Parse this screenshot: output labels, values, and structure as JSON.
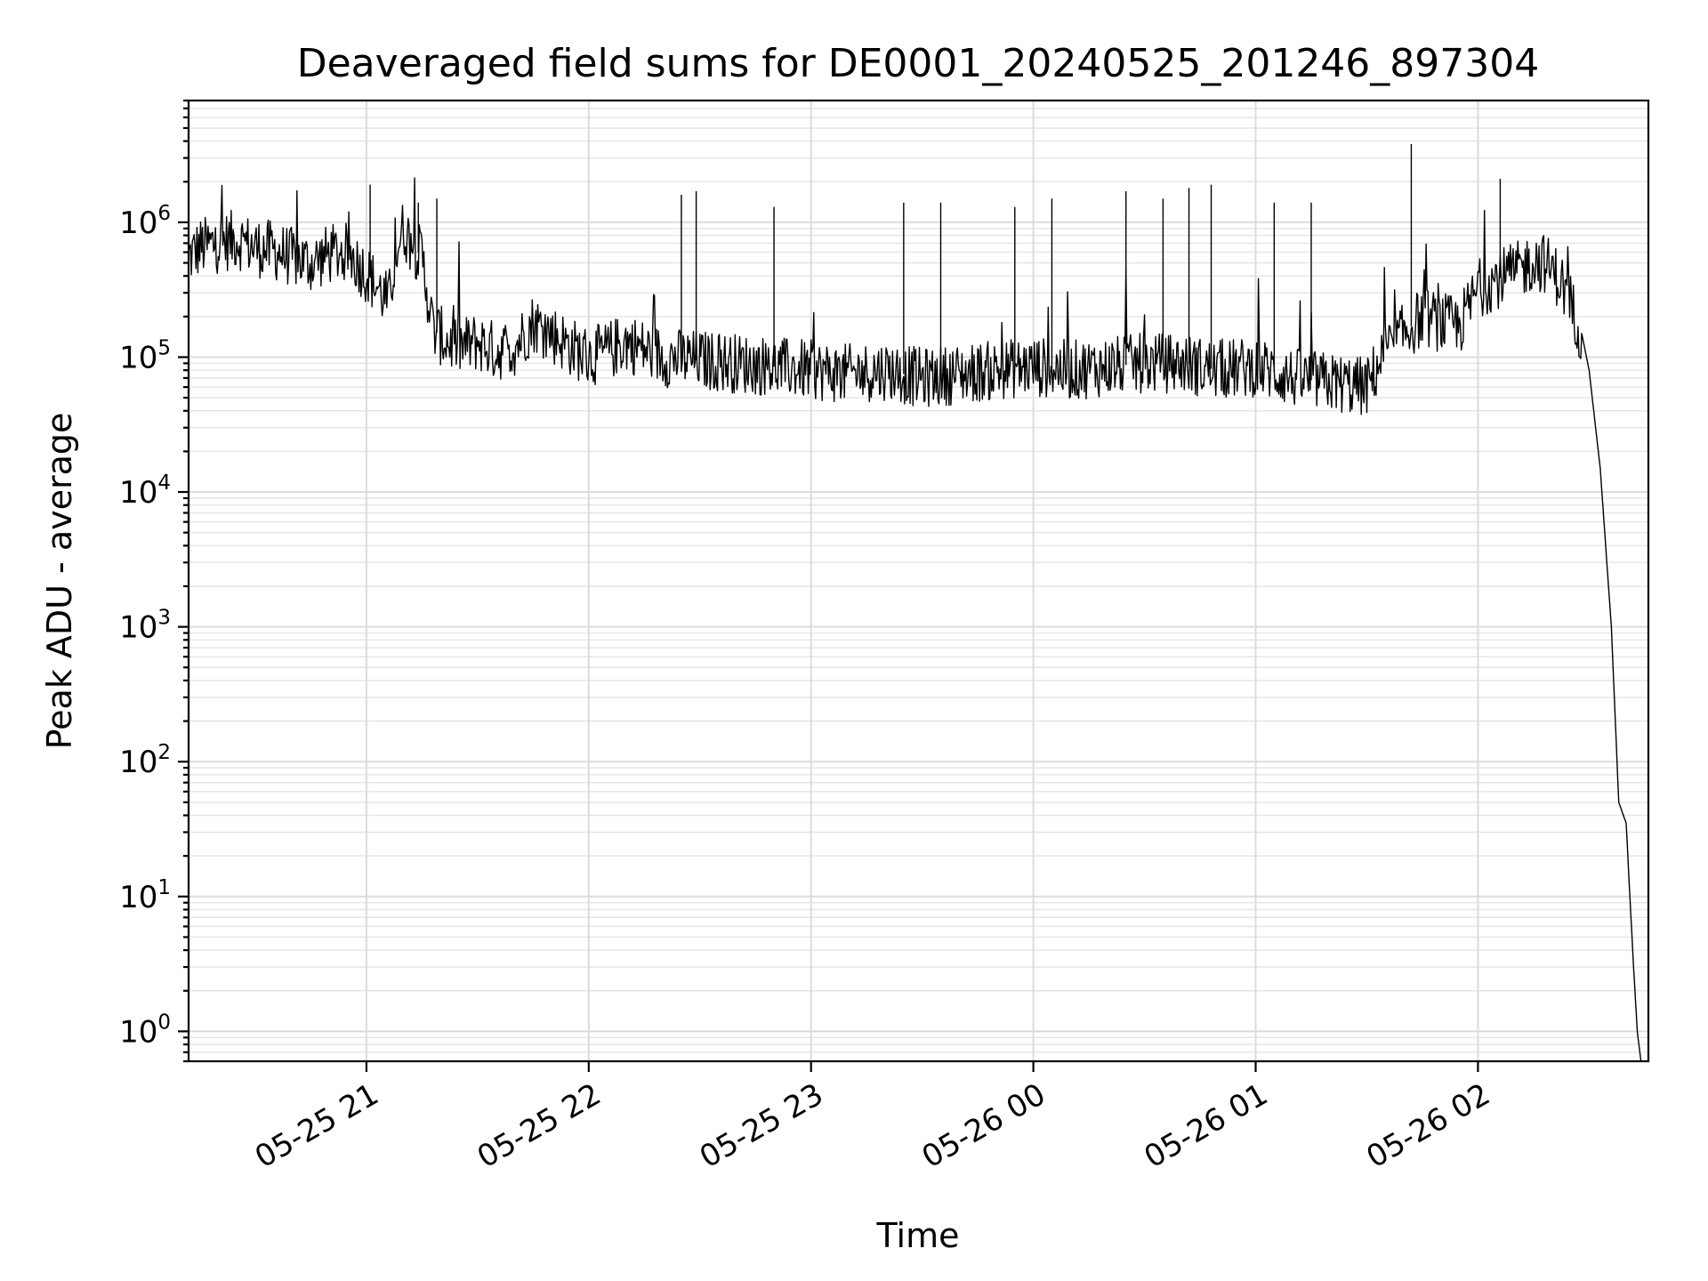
{
  "chart_data": {
    "type": "line",
    "title": "Deaveraged field sums for DE0001_20240525_201246_897304",
    "xlabel": "Time",
    "ylabel": "Peak ADU - average",
    "yscale": "log",
    "xlim": [
      "2024-05-25 20:12",
      "2024-05-26 02:46"
    ],
    "ylim": [
      0.6,
      8000000
    ],
    "grid": "on (major and minor)",
    "x_ticks": [
      "05-25 21",
      "05-25 22",
      "05-25 23",
      "05-26 00",
      "05-26 01",
      "05-26 02"
    ],
    "y_ticks": [
      {
        "base": "10",
        "exp": "0",
        "value": 1
      },
      {
        "base": "10",
        "exp": "1",
        "value": 10
      },
      {
        "base": "10",
        "exp": "2",
        "value": 100
      },
      {
        "base": "10",
        "exp": "3",
        "value": 1000
      },
      {
        "base": "10",
        "exp": "4",
        "value": 10000
      },
      {
        "base": "10",
        "exp": "5",
        "value": 100000
      },
      {
        "base": "10",
        "exp": "6",
        "value": 1000000
      }
    ],
    "series": [
      {
        "color": "#000000",
        "x": [
          "20:12",
          "20:15",
          "20:20",
          "20:25",
          "20:30",
          "20:35",
          "20:40",
          "20:45",
          "20:50",
          "20:55",
          "21:00",
          "21:03",
          "21:06",
          "21:08",
          "21:10",
          "21:12",
          "21:15",
          "21:18",
          "21:22",
          "21:26",
          "21:30",
          "21:35",
          "21:40",
          "21:45",
          "21:50",
          "21:55",
          "22:00",
          "22:05",
          "22:10",
          "22:20",
          "22:30",
          "22:40",
          "22:50",
          "23:00",
          "23:10",
          "23:20",
          "23:30",
          "23:40",
          "23:50",
          "00:00",
          "00:10",
          "00:20",
          "00:30",
          "00:40",
          "00:50",
          "01:00",
          "01:10",
          "01:20",
          "01:30",
          "01:35",
          "01:40",
          "01:45",
          "01:50",
          "01:55",
          "02:00",
          "02:05",
          "02:10",
          "02:15",
          "02:18",
          "02:22",
          "02:25",
          "02:28",
          "02:30",
          "02:33",
          "02:36",
          "02:38",
          "02:40",
          "02:41",
          "02:42",
          "02:43",
          "02:44"
        ],
        "x_dates": "2024-05-25 20:12 through 2024-05-26 02:44",
        "values": [
          550000,
          650000,
          700000,
          750000,
          650000,
          620000,
          550000,
          500000,
          580000,
          600000,
          420000,
          330000,
          250000,
          600000,
          900000,
          700000,
          550000,
          160000,
          130000,
          120000,
          130000,
          110000,
          120000,
          180000,
          150000,
          120000,
          100000,
          110000,
          130000,
          100000,
          95000,
          90000,
          85000,
          80000,
          75000,
          80000,
          70000,
          75000,
          80000,
          85000,
          80000,
          85000,
          90000,
          90000,
          80000,
          85000,
          70000,
          65000,
          60000,
          110000,
          150000,
          200000,
          180000,
          170000,
          320000,
          380000,
          420000,
          520000,
          500000,
          380000,
          250000,
          150000,
          80000,
          15000,
          1000,
          50,
          35,
          10,
          3,
          1,
          0.6
        ],
        "spikes": [
          {
            "x": "21:01",
            "value": 1900000
          },
          {
            "x": "21:14",
            "value": 1400000
          },
          {
            "x": "21:19",
            "value": 1500000
          },
          {
            "x": "22:25",
            "value": 1600000
          },
          {
            "x": "22:29",
            "value": 1700000
          },
          {
            "x": "22:50",
            "value": 1300000
          },
          {
            "x": "23:25",
            "value": 1400000
          },
          {
            "x": "23:35",
            "value": 1400000
          },
          {
            "x": "23:55",
            "value": 1300000
          },
          {
            "x": "00:05",
            "value": 1500000
          },
          {
            "x": "00:25",
            "value": 1700000
          },
          {
            "x": "00:35",
            "value": 1500000
          },
          {
            "x": "00:42",
            "value": 1800000
          },
          {
            "x": "00:48",
            "value": 1900000
          },
          {
            "x": "01:05",
            "value": 1400000
          },
          {
            "x": "01:15",
            "value": 1400000
          },
          {
            "x": "01:42",
            "value": 3800000
          },
          {
            "x": "02:06",
            "value": 2100000
          }
        ]
      }
    ]
  }
}
